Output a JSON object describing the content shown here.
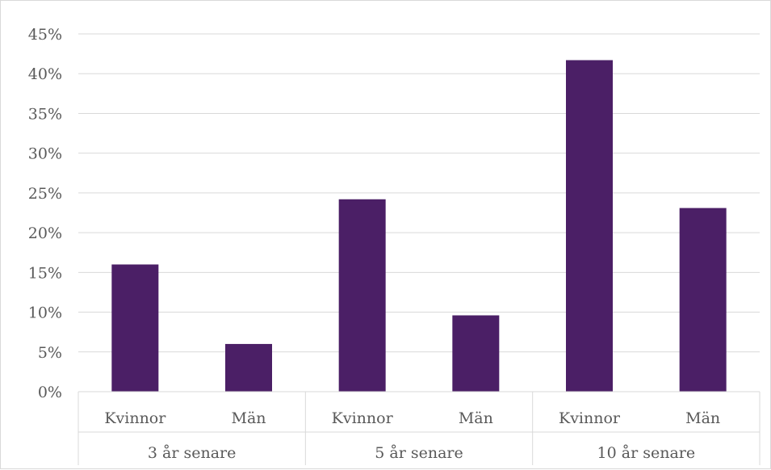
{
  "chart_data": {
    "type": "bar",
    "title": "",
    "xlabel": "",
    "ylabel": "",
    "ylim": [
      0,
      45
    ],
    "y_ticks": [
      "0%",
      "5%",
      "10%",
      "15%",
      "20%",
      "25%",
      "30%",
      "35%",
      "40%",
      "45%"
    ],
    "y_tick_values": [
      0,
      5,
      10,
      15,
      20,
      25,
      30,
      35,
      40,
      45
    ],
    "grid": true,
    "bar_color": "#4b1f66",
    "groups": [
      "3 år senare",
      "5 år senare",
      "10 år senare"
    ],
    "categories": [
      "Kvinnor",
      "Män",
      "Kvinnor",
      "Män",
      "Kvinnor",
      "Män"
    ],
    "values": [
      16.0,
      6.0,
      24.2,
      9.6,
      41.7,
      23.1
    ]
  }
}
